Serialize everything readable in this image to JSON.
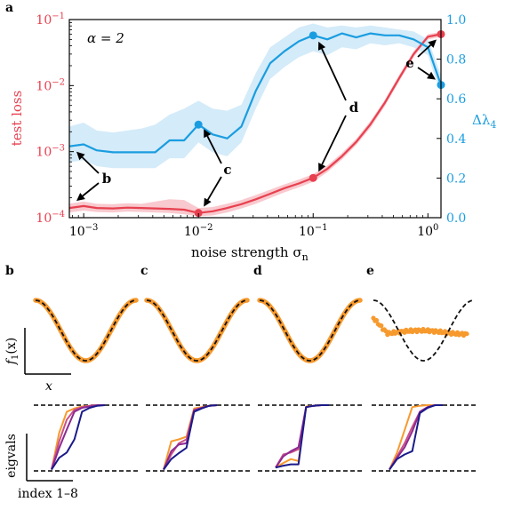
{
  "chart_data": [
    {
      "type": "line",
      "panel_label": "a",
      "annotation": "α = 2",
      "xlabel": "noise strength σ",
      "xlabel_sub": "n",
      "x_scale": "log",
      "xlim": [
        0.00075,
        1.3
      ],
      "x_ticks": [
        {
          "value": 0.001,
          "base": "10",
          "exp": "−3"
        },
        {
          "value": 0.01,
          "base": "10",
          "exp": "−2"
        },
        {
          "value": 0.1,
          "base": "10",
          "exp": "−1"
        },
        {
          "value": 1,
          "base": "10",
          "exp": "0"
        }
      ],
      "left_axis": {
        "label": "test loss",
        "scale": "log",
        "ylim": [
          0.0001,
          0.1
        ],
        "color": "#e8404f",
        "ticks": [
          {
            "value": 0.0001,
            "base": "10",
            "exp": "−4"
          },
          {
            "value": 0.001,
            "base": "10",
            "exp": "−3"
          },
          {
            "value": 0.01,
            "base": "10",
            "exp": "−2"
          },
          {
            "value": 0.1,
            "base": "10",
            "exp": "−1"
          }
        ]
      },
      "right_axis": {
        "label": "Δλ",
        "label_sub": "4",
        "scale": "linear",
        "ylim": [
          0,
          1
        ],
        "color": "#1a9de0",
        "ticks": [
          "0.0",
          "0.2",
          "0.4",
          "0.6",
          "0.8",
          "1.0"
        ]
      },
      "series": [
        {
          "axis": "left",
          "color": "#e8404f",
          "band_color": "#f4a5ad",
          "x": [
            0.00075,
            0.001,
            0.0013,
            0.0018,
            0.0024,
            0.0032,
            0.0042,
            0.0056,
            0.0075,
            0.01,
            0.0133,
            0.0178,
            0.0237,
            0.0316,
            0.0422,
            0.0562,
            0.075,
            0.1,
            0.133,
            0.178,
            0.237,
            0.316,
            0.422,
            0.562,
            0.75,
            1.0,
            1.3
          ],
          "y": [
            0.00014,
            0.00015,
            0.00014,
            0.000138,
            0.000142,
            0.00014,
            0.000138,
            0.000136,
            0.000132,
            0.000118,
            0.000125,
            0.00014,
            0.00016,
            0.00019,
            0.00023,
            0.00028,
            0.00033,
            0.0004,
            0.00055,
            0.00085,
            0.0014,
            0.0026,
            0.0055,
            0.013,
            0.03,
            0.055,
            0.06
          ],
          "y_low": [
            0.00012,
            0.000128,
            0.000122,
            0.00012,
            0.000124,
            0.000122,
            0.00012,
            0.000118,
            0.000112,
            0.000105,
            0.000108,
            0.00012,
            0.000138,
            0.000162,
            0.000198,
            0.000242,
            0.000288,
            0.00035,
            0.00049,
            0.00076,
            0.00126,
            0.0023,
            0.0049,
            0.0116,
            0.027,
            0.05,
            0.055
          ],
          "y_high": [
            0.000163,
            0.000175,
            0.000162,
            0.00016,
            0.000165,
            0.000162,
            0.000175,
            0.00019,
            0.000185,
            0.00014,
            0.000145,
            0.000163,
            0.000185,
            0.00022,
            0.000265,
            0.00032,
            0.000378,
            0.000456,
            0.00062,
            0.00095,
            0.00156,
            0.0029,
            0.0061,
            0.0145,
            0.033,
            0.06,
            0.065
          ]
        },
        {
          "axis": "right",
          "color": "#1a9de0",
          "band_color": "#b7def5",
          "x": [
            0.00075,
            0.001,
            0.0013,
            0.0018,
            0.0024,
            0.0032,
            0.0042,
            0.0056,
            0.0075,
            0.01,
            0.0133,
            0.0178,
            0.0237,
            0.0316,
            0.0422,
            0.0562,
            0.075,
            0.1,
            0.133,
            0.178,
            0.237,
            0.316,
            0.422,
            0.562,
            0.75,
            1.0,
            1.3
          ],
          "y": [
            0.36,
            0.37,
            0.34,
            0.33,
            0.33,
            0.33,
            0.33,
            0.39,
            0.39,
            0.47,
            0.42,
            0.4,
            0.46,
            0.64,
            0.78,
            0.84,
            0.89,
            0.92,
            0.9,
            0.93,
            0.91,
            0.93,
            0.92,
            0.92,
            0.9,
            0.86,
            0.67
          ],
          "y_low": [
            0.28,
            0.29,
            0.26,
            0.25,
            0.25,
            0.25,
            0.25,
            0.3,
            0.3,
            0.38,
            0.33,
            0.31,
            0.38,
            0.55,
            0.7,
            0.76,
            0.81,
            0.84,
            0.82,
            0.86,
            0.85,
            0.88,
            0.87,
            0.88,
            0.86,
            0.82,
            0.62
          ],
          "y_high": [
            0.46,
            0.48,
            0.44,
            0.43,
            0.44,
            0.45,
            0.47,
            0.52,
            0.55,
            0.59,
            0.55,
            0.54,
            0.57,
            0.73,
            0.86,
            0.91,
            0.96,
            0.98,
            0.96,
            0.97,
            0.96,
            0.97,
            0.96,
            0.95,
            0.94,
            0.9,
            0.72
          ]
        }
      ],
      "markers": [
        {
          "label": "b",
          "x": 0.00075,
          "loss": 0.00014,
          "dl": 0.36
        },
        {
          "label": "c",
          "x": 0.01,
          "loss": 0.000118,
          "dl": 0.47
        },
        {
          "label": "d",
          "x": 0.1,
          "loss": 0.0004,
          "dl": 0.92
        },
        {
          "label": "e",
          "x": 1.3,
          "loss": 0.06,
          "dl": 0.67
        }
      ]
    },
    {
      "type": "line",
      "panels": [
        "b",
        "c",
        "d",
        "e"
      ],
      "ylabel": "f",
      "ylabel_sub": "1",
      "ylabel_arg": "(x)",
      "xlabel": "x",
      "target_color": "#111111",
      "prediction_color": "#f79a2e",
      "prediction_offset": [
        0,
        0,
        0,
        0.62
      ],
      "prediction_amplitude": [
        1,
        1,
        1,
        0.06
      ]
    },
    {
      "type": "line",
      "panels": [
        "b",
        "c",
        "d",
        "e"
      ],
      "ylabel": "eigvals",
      "xlabel": "index 1–8",
      "x": [
        1,
        2,
        3,
        4,
        5,
        6,
        7,
        8
      ],
      "line_colors": [
        "#f79a2e",
        "#c95088",
        "#8d2a91",
        "#1a1a8a"
      ],
      "series": [
        [
          [
            0.02,
            0.58,
            0.9,
            0.95,
            0.98,
            0.99,
            1.0,
            1.0
          ],
          [
            0.03,
            0.45,
            0.78,
            0.93,
            0.97,
            0.99,
            1.0,
            1.0
          ],
          [
            0.02,
            0.35,
            0.63,
            0.9,
            0.96,
            0.98,
            1.0,
            1.0
          ],
          [
            0.02,
            0.2,
            0.28,
            0.48,
            0.9,
            0.96,
            0.99,
            1.0
          ]
        ],
        [
          [
            0.02,
            0.45,
            0.48,
            0.52,
            0.95,
            0.97,
            0.99,
            1.0
          ],
          [
            0.02,
            0.25,
            0.42,
            0.48,
            0.93,
            0.96,
            0.99,
            1.0
          ],
          [
            0.02,
            0.3,
            0.4,
            0.42,
            0.92,
            0.96,
            0.99,
            1.0
          ],
          [
            0.02,
            0.18,
            0.27,
            0.35,
            0.9,
            0.95,
            0.99,
            1.0
          ]
        ],
        [
          [
            0.05,
            0.12,
            0.18,
            0.15,
            0.98,
            0.99,
            1.0,
            1.0
          ],
          [
            0.05,
            0.25,
            0.28,
            0.33,
            0.97,
            0.99,
            1.0,
            1.0
          ],
          [
            0.05,
            0.22,
            0.3,
            0.36,
            0.97,
            0.99,
            1.0,
            1.0
          ],
          [
            0.05,
            0.08,
            0.1,
            0.1,
            0.97,
            0.99,
            1.0,
            1.0
          ]
        ],
        [
          [
            0.02,
            0.28,
            0.62,
            0.97,
            0.99,
            1.0,
            1.0,
            1.0
          ],
          [
            0.02,
            0.22,
            0.42,
            0.67,
            0.9,
            0.97,
            1.0,
            1.0
          ],
          [
            0.02,
            0.2,
            0.36,
            0.6,
            0.9,
            0.97,
            1.0,
            1.0
          ],
          [
            0.02,
            0.18,
            0.25,
            0.3,
            0.88,
            0.96,
            1.0,
            1.0
          ]
        ]
      ]
    }
  ]
}
